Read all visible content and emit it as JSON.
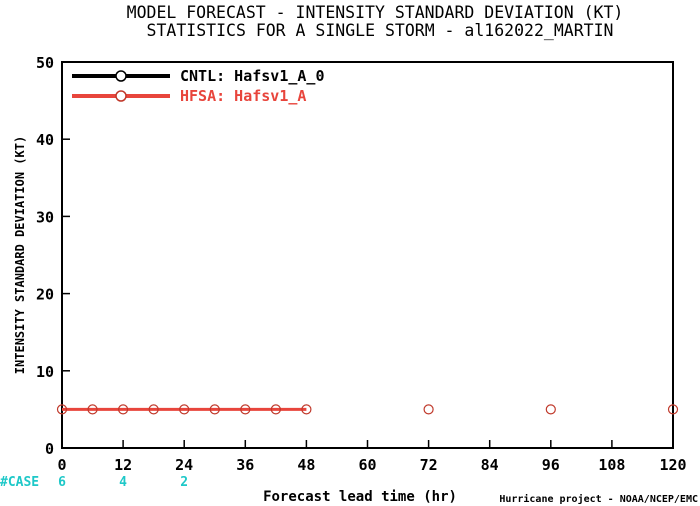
{
  "chart_data": {
    "type": "line",
    "title_line1": "MODEL FORECAST - INTENSITY STANDARD DEVIATION (KT)",
    "title_line2": "STATISTICS FOR A SINGLE STORM - al162022_MARTIN",
    "xlabel": "Forecast lead time (hr)",
    "ylabel": "INTENSITY STANDARD DEVIATION (KT)",
    "credit": "Hurricane project - NOAA/NCEP/EMC",
    "xlim": [
      0,
      120
    ],
    "ylim": [
      0,
      50
    ],
    "xticks": [
      0,
      12,
      24,
      36,
      48,
      60,
      72,
      84,
      96,
      108,
      120
    ],
    "yticks": [
      0,
      10,
      20,
      30,
      40,
      50
    ],
    "grid": false,
    "legend_position": "top-left",
    "series": [
      {
        "name": "CNTL: Hafsv1_A_0",
        "color": "#000000",
        "x": [],
        "y": []
      },
      {
        "name": "HFSA: Hafsv1_A",
        "color": "#e8453c",
        "marker_color": "#c0392b",
        "line_x": [
          0,
          6,
          12,
          18,
          24,
          30,
          36,
          42,
          48
        ],
        "line_y": [
          5,
          5,
          5,
          5,
          5,
          5,
          5,
          5,
          5
        ],
        "x": [
          0,
          6,
          12,
          18,
          24,
          30,
          36,
          42,
          48,
          72,
          96,
          120
        ],
        "y": [
          5,
          5,
          5,
          5,
          5,
          5,
          5,
          5,
          5,
          5,
          5,
          5
        ]
      }
    ],
    "case_label": "#CASE",
    "case_color": "#1ec8c8",
    "case_counts": [
      {
        "x": 0,
        "value": "6"
      },
      {
        "x": 12,
        "value": "4"
      },
      {
        "x": 24,
        "value": "2"
      }
    ]
  }
}
